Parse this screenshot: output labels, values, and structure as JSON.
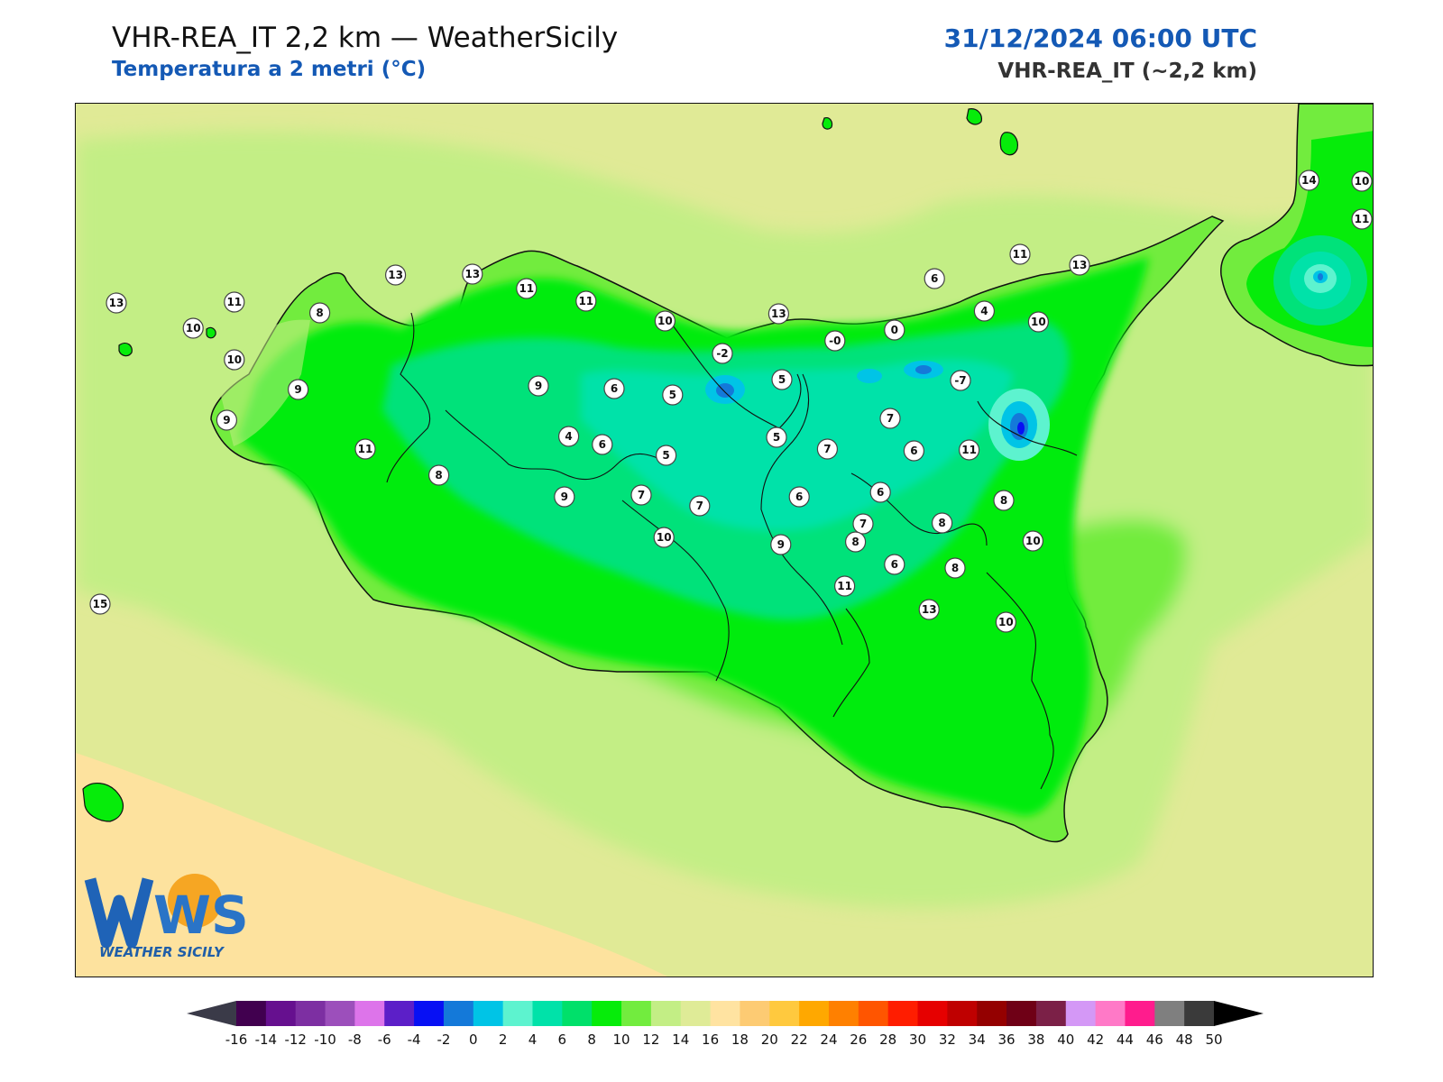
{
  "header": {
    "title": "VHR-REA_IT 2,2 km — WeatherSicily",
    "subtitle": "Temperatura a 2 metri (°C)",
    "datetime": "31/12/2024 06:00 UTC",
    "model": "VHR-REA_IT (~2,2 km)"
  },
  "logo": {
    "text": "WS",
    "caption": "WEATHER SICILY"
  },
  "colors": {
    "sea_cool": "#e0ea96",
    "sea_warm": "#fde29e",
    "land_low": "#c3ee85",
    "land_mid": "#72ec3e",
    "land_green": "#06ec0a",
    "land_teal": "#00e27a",
    "land_cyan": "#00e2a9",
    "cold_spot": "#1479d9",
    "brand_blue": "#1459b5"
  },
  "colorbar": {
    "ticks": [
      "-16",
      "-14",
      "-12",
      "-10",
      "-8",
      "-6",
      "-4",
      "-2",
      "0",
      "2",
      "4",
      "6",
      "8",
      "10",
      "12",
      "14",
      "16",
      "18",
      "20",
      "22",
      "24",
      "26",
      "28",
      "30",
      "32",
      "34",
      "36",
      "38",
      "40",
      "42",
      "44",
      "46",
      "48",
      "50"
    ],
    "colors": [
      "#41004f",
      "#66108f",
      "#7d2fa2",
      "#9c4fbb",
      "#dd74ea",
      "#5c1fc8",
      "#0710f4",
      "#1479d9",
      "#00c4e6",
      "#5df3cf",
      "#00e2a9",
      "#00e06a",
      "#06ec0a",
      "#72ec3e",
      "#c3ee85",
      "#dfeb97",
      "#ffe3a1",
      "#fdcb73",
      "#ffc93e",
      "#ffa800",
      "#ff8000",
      "#ff5500",
      "#ff1d00",
      "#e60000",
      "#bf0000",
      "#940000",
      "#6f0016",
      "#7b2047",
      "#d498f6",
      "#ff79c7",
      "#ff1c8d",
      "#7f7f7f",
      "#3a3a3a"
    ],
    "extend_low_color": "#3a3a48",
    "extend_high_color": "#000000"
  },
  "stations": [
    {
      "value": "14",
      "lon": 12.85,
      "lat": 38.9
    },
    {
      "value": "10",
      "lon": 13.4,
      "lat": 38.89
    },
    {
      "value": "11",
      "lon": 13.72,
      "lat": 38.47
    },
    {
      "value": "13",
      "lon": 4.41,
      "lat": 37.85
    },
    {
      "value": "13",
      "lon": 5.12,
      "lat": 37.86
    },
    {
      "value": "11",
      "lon": 5.62,
      "lat": 37.7
    },
    {
      "value": "11",
      "lon": 6.17,
      "lat": 37.56
    },
    {
      "value": "10",
      "lon": 6.9,
      "lat": 37.34
    },
    {
      "value": "13",
      "lon": 7.95,
      "lat": 37.42
    },
    {
      "value": "6",
      "lon": 9.39,
      "lat": 37.81
    },
    {
      "value": "11",
      "lon": 10.18,
      "lat": 38.08
    },
    {
      "value": "13",
      "lon": 10.73,
      "lat": 37.96
    },
    {
      "value": "4",
      "lon": 9.85,
      "lat": 37.45
    },
    {
      "value": "10",
      "lon": 10.35,
      "lat": 37.33
    },
    {
      "value": "0",
      "lon": 9.02,
      "lat": 37.24
    },
    {
      "value": "-0",
      "lon": 8.47,
      "lat": 37.12
    },
    {
      "value": "13",
      "lon": 1.83,
      "lat": 37.54
    },
    {
      "value": "11",
      "lon": 2.92,
      "lat": 37.55
    },
    {
      "value": "8",
      "lon": 3.71,
      "lat": 37.43
    },
    {
      "value": "10",
      "lon": 2.54,
      "lat": 37.26
    },
    {
      "value": "-2",
      "lon": 7.43,
      "lat": 36.98
    },
    {
      "value": "10",
      "lon": 2.92,
      "lat": 36.91
    },
    {
      "value": "-7",
      "lon": 9.63,
      "lat": 36.68
    },
    {
      "value": "5",
      "lon": 7.98,
      "lat": 36.69
    },
    {
      "value": "9",
      "lon": 3.51,
      "lat": 36.58
    },
    {
      "value": "9",
      "lon": 5.73,
      "lat": 36.62
    },
    {
      "value": "6",
      "lon": 6.43,
      "lat": 36.59
    },
    {
      "value": "5",
      "lon": 6.97,
      "lat": 36.52
    },
    {
      "value": "9",
      "lon": 2.85,
      "lat": 36.24
    },
    {
      "value": "7",
      "lon": 8.98,
      "lat": 36.26
    },
    {
      "value": "5",
      "lon": 7.93,
      "lat": 36.05
    },
    {
      "value": "11",
      "lon": 4.13,
      "lat": 35.92
    },
    {
      "value": "4",
      "lon": 6.01,
      "lat": 36.06
    },
    {
      "value": "6",
      "lon": 6.32,
      "lat": 35.97
    },
    {
      "value": "5",
      "lon": 6.91,
      "lat": 35.85
    },
    {
      "value": "7",
      "lon": 8.4,
      "lat": 35.92
    },
    {
      "value": "6",
      "lon": 9.2,
      "lat": 35.9
    },
    {
      "value": "11",
      "lon": 9.71,
      "lat": 35.91
    },
    {
      "value": "8",
      "lon": 4.81,
      "lat": 35.63
    },
    {
      "value": "9",
      "lon": 5.97,
      "lat": 35.39
    },
    {
      "value": "7",
      "lon": 6.68,
      "lat": 35.41
    },
    {
      "value": "6",
      "lon": 8.14,
      "lat": 35.39
    },
    {
      "value": "6",
      "lon": 8.89,
      "lat": 35.44
    },
    {
      "value": "8",
      "lon": 10.03,
      "lat": 35.35
    },
    {
      "value": "7",
      "lon": 7.22,
      "lat": 35.29
    },
    {
      "value": "8",
      "lon": 9.46,
      "lat": 35.1
    },
    {
      "value": "7",
      "lon": 8.73,
      "lat": 35.09
    },
    {
      "value": "10",
      "lon": 6.89,
      "lat": 34.94
    },
    {
      "value": "9",
      "lon": 7.97,
      "lat": 34.86
    },
    {
      "value": "8",
      "lon": 8.66,
      "lat": 34.89
    },
    {
      "value": "10",
      "lon": 10.3,
      "lat": 34.9
    },
    {
      "value": "6",
      "lon": 9.02,
      "lat": 34.64
    },
    {
      "value": "8",
      "lon": 9.58,
      "lat": 34.6
    },
    {
      "value": "11",
      "lon": 8.56,
      "lat": 34.4
    },
    {
      "value": "13",
      "lon": 9.34,
      "lat": 34.14
    },
    {
      "value": "10",
      "lon": 10.05,
      "lat": 34.0
    },
    {
      "value": "15",
      "lon": 1.68,
      "lat": 34.2
    }
  ]
}
